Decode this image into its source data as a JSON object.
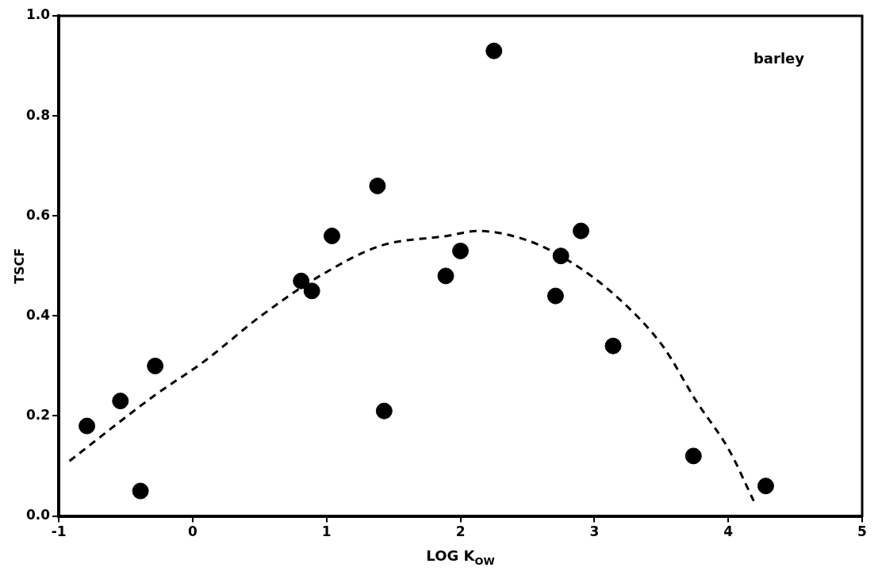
{
  "chart_data": {
    "type": "scatter",
    "xlabel": "LOG K$_{OW}$",
    "ylabel": "TSCF",
    "annotations": [
      "barley"
    ],
    "xlim": [
      -1,
      5
    ],
    "xticks": [
      -1,
      0,
      1,
      2,
      3,
      4,
      5
    ],
    "ylim": [
      0,
      1
    ],
    "yticks": [
      {
        "value": 0,
        "label": "0.0"
      },
      0.2,
      0.4,
      0.6,
      0.8,
      {
        "value": 1,
        "label": "1.0"
      }
    ],
    "grid": false,
    "legend": false,
    "marker": "circle",
    "series": [
      {
        "type": "scatter",
        "color": "#000000",
        "x": [
          -0.79,
          -0.54,
          -0.39,
          -0.28,
          0.81,
          0.89,
          1.04,
          1.38,
          1.43,
          1.89,
          2.0,
          2.25,
          2.71,
          2.75,
          2.9,
          3.14,
          3.74,
          4.28
        ],
        "values": [
          0.18,
          0.23,
          0.05,
          0.3,
          0.47,
          0.45,
          0.56,
          0.66,
          0.21,
          0.48,
          0.53,
          0.93,
          0.44,
          0.52,
          0.57,
          0.34,
          0.12,
          0.06
        ]
      },
      {
        "type": "line",
        "color": "#000000",
        "line_style": "dashed",
        "marker": "none",
        "x": [
          -0.92,
          -0.29,
          0.09,
          0.51,
          0.95,
          1.4,
          1.9,
          2.13,
          2.51,
          2.81,
          3.16,
          3.51,
          3.76,
          4.01,
          4.19
        ],
        "values": [
          0.11,
          0.24,
          0.31,
          0.4,
          0.48,
          0.54,
          0.56,
          0.57,
          0.55,
          0.51,
          0.44,
          0.34,
          0.23,
          0.13,
          0.03
        ]
      }
    ]
  }
}
